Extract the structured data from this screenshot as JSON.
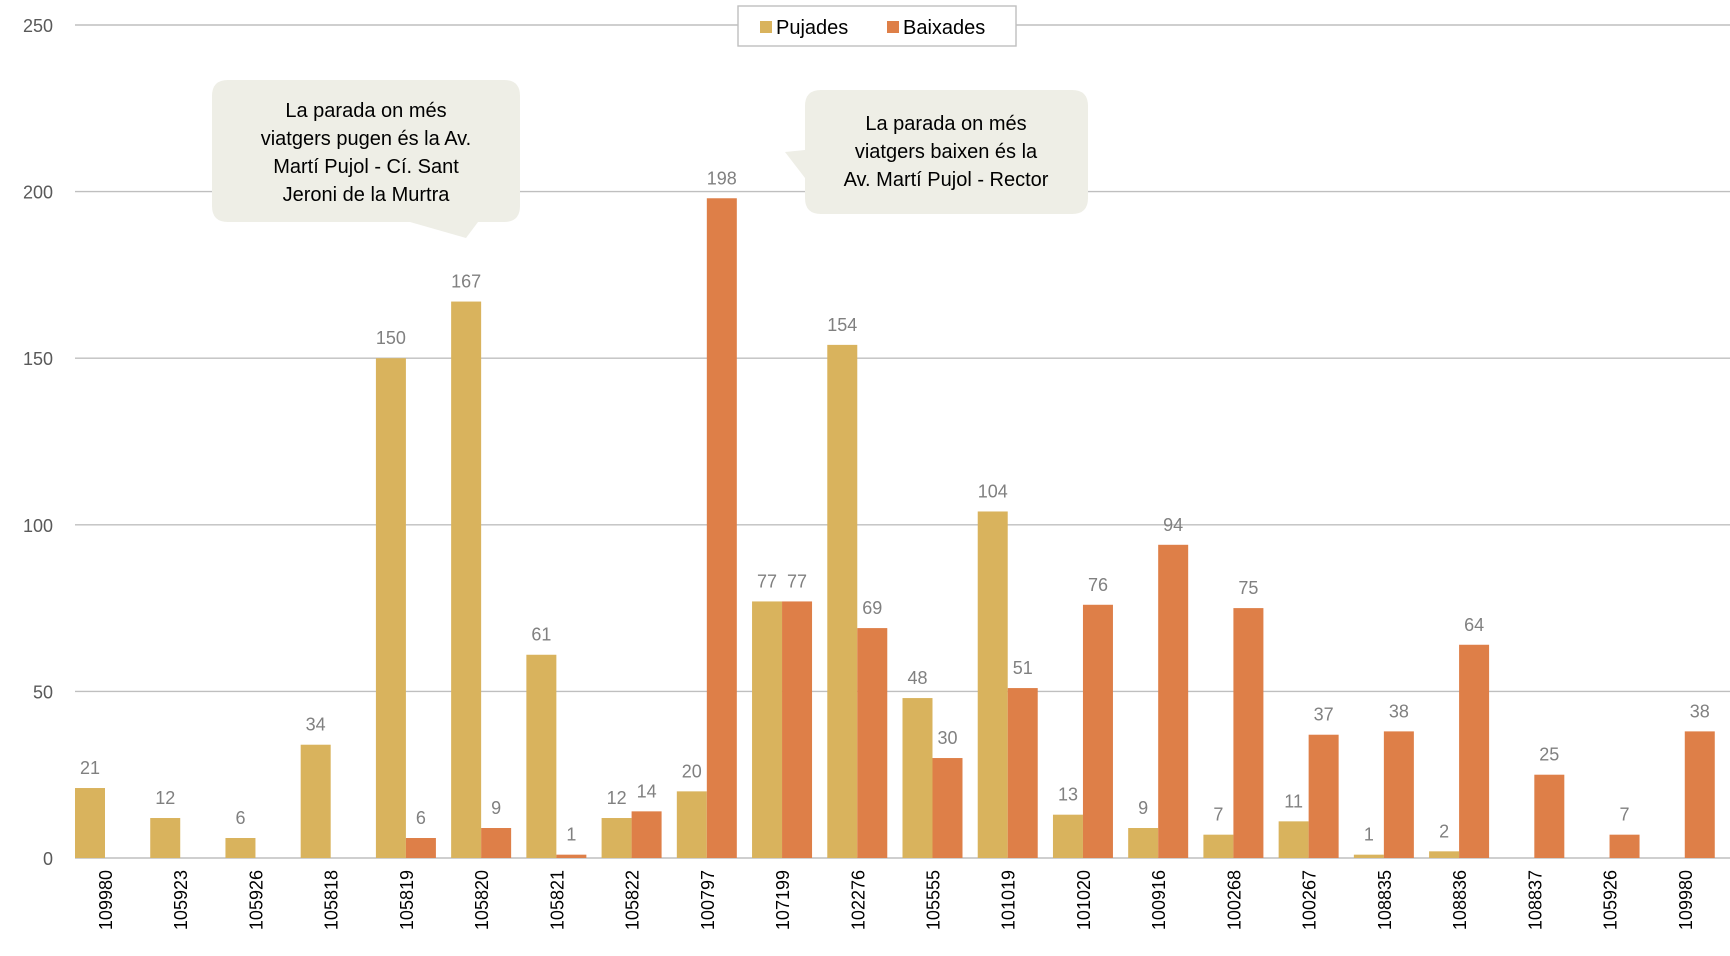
{
  "chart_data": {
    "type": "bar",
    "categories": [
      "109980",
      "105923",
      "105926",
      "105818",
      "105819",
      "105820",
      "105821",
      "105822",
      "100797",
      "107199",
      "102276",
      "105555",
      "101019",
      "101020",
      "100916",
      "100268",
      "100267",
      "108835",
      "108836",
      "108837",
      "105926",
      "109980"
    ],
    "series": [
      {
        "name": "Pujades",
        "color": "#d9b35d",
        "values": [
          21,
          12,
          6,
          34,
          150,
          167,
          61,
          12,
          20,
          77,
          154,
          48,
          104,
          13,
          9,
          7,
          11,
          1,
          2,
          null,
          null,
          null
        ]
      },
      {
        "name": "Baixades",
        "color": "#de7f48",
        "values": [
          null,
          null,
          null,
          null,
          6,
          9,
          1,
          14,
          198,
          77,
          69,
          30,
          51,
          76,
          94,
          75,
          37,
          38,
          64,
          25,
          7,
          38
        ]
      }
    ],
    "yticks": [
      0,
      50,
      100,
      150,
      200,
      250
    ],
    "ylim": [
      0,
      250
    ],
    "grid": true,
    "legend_position": "top-center",
    "annotations": [
      {
        "lines": [
          "La parada on més",
          "viatgers pugen és la  Av.",
          "Martí Pujol - Cí. Sant",
          "Jeroni de la Murtra"
        ]
      },
      {
        "lines": [
          "La parada on més",
          "viatgers baixen és la",
          "Av. Martí Pujol - Rector"
        ]
      }
    ]
  }
}
